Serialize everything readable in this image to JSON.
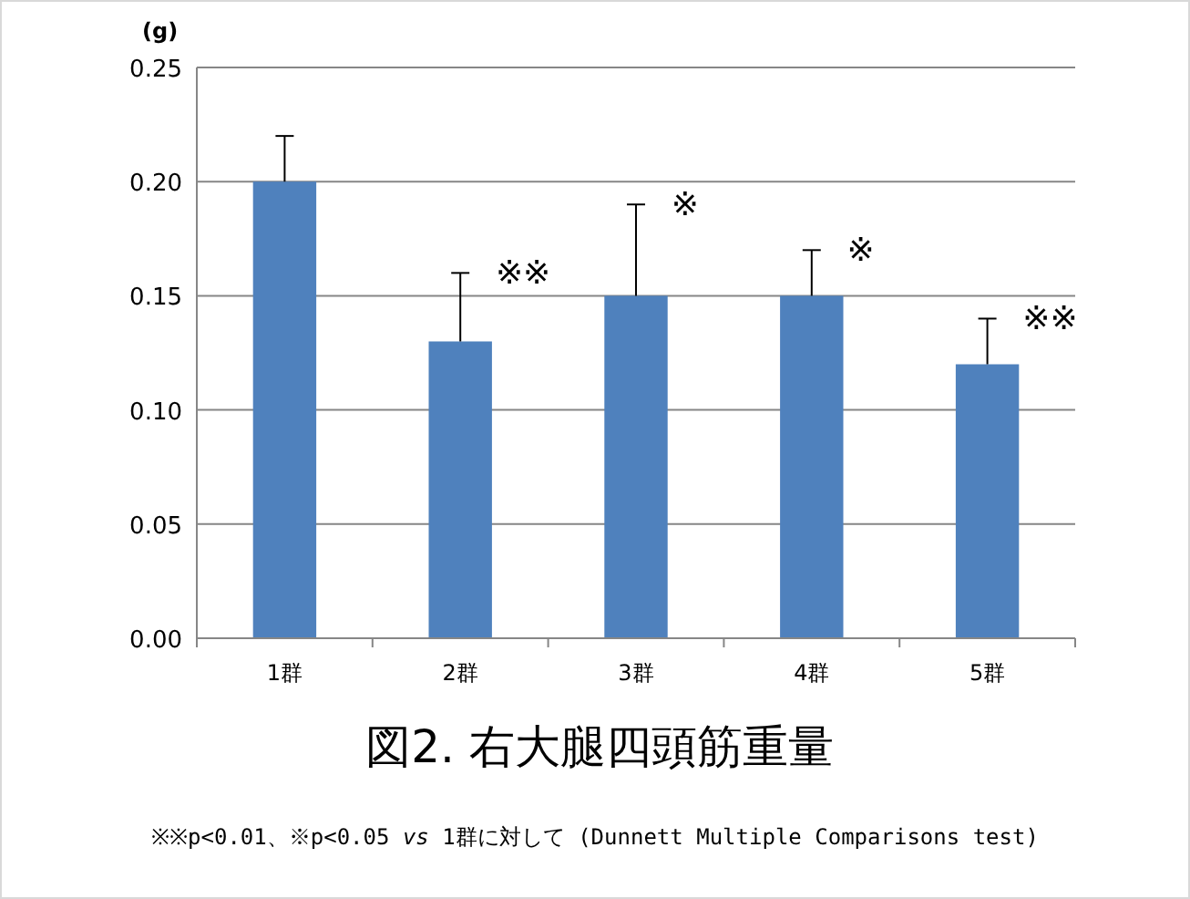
{
  "chart_data": {
    "type": "bar",
    "title": "図2. 右大腿四頭筋重量",
    "ylabel": "(g)",
    "categories": [
      "1群",
      "2群",
      "3群",
      "4群",
      "5群"
    ],
    "values": [
      0.2,
      0.13,
      0.15,
      0.15,
      0.12
    ],
    "errors": [
      [
        0.2,
        0.22
      ],
      [
        0.13,
        0.16
      ],
      [
        0.15,
        0.19
      ],
      [
        0.15,
        0.17
      ],
      [
        0.12,
        0.14
      ]
    ],
    "color": "#4f81bd",
    "ylim": [
      0,
      0.25
    ],
    "yticks": [
      {
        "value": 0,
        "label": "0.00"
      },
      {
        "value": 0.05,
        "label": "0.05"
      },
      {
        "value": 0.1,
        "label": "0.10"
      },
      {
        "value": 0.15,
        "label": "0.15"
      },
      {
        "value": 0.2,
        "label": "0.20"
      },
      {
        "value": 0.25,
        "label": "0.25"
      }
    ],
    "grid": "y",
    "annotations": [
      {
        "text": "※※",
        "x": "2群",
        "y": 0.16
      },
      {
        "text": "※",
        "x": "3群",
        "y": 0.19
      },
      {
        "text": "※",
        "x": "4群",
        "y": 0.17
      },
      {
        "text": "※※",
        "x": "5群",
        "y": 0.14
      },
      "※※p<0.01、※p<0.05 *vs* 1群に対して (Dunnett Multiple Comparisons test)"
    ]
  }
}
